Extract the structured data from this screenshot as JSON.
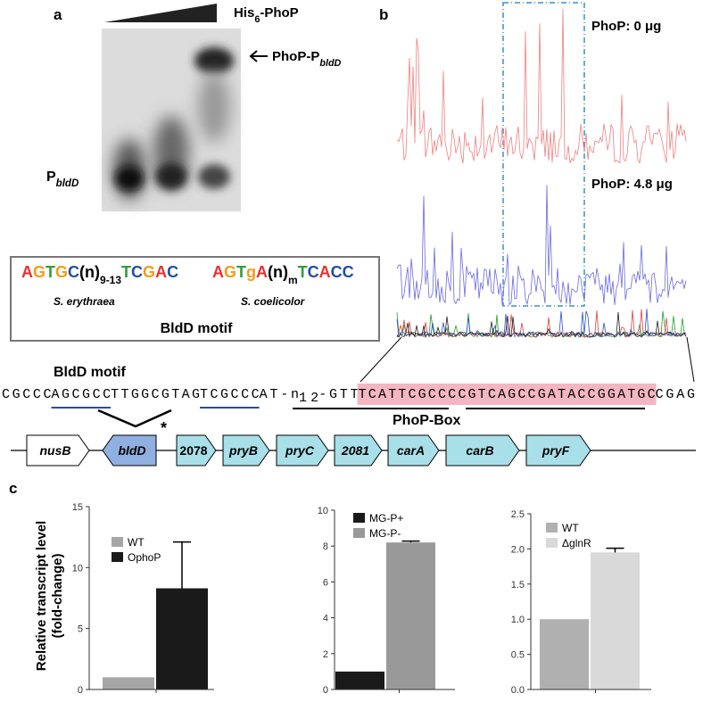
{
  "panel_labels": [
    "a",
    "b",
    "c"
  ],
  "gel": {
    "protein_label": [
      "His",
      "6",
      "-PhoP"
    ],
    "complex_label": [
      "PhoP-P",
      "bldD"
    ],
    "probe_label": [
      "P",
      "bldD"
    ]
  },
  "motifs": {
    "title": "BldD motif",
    "items": [
      {
        "prefix": "AGTGC",
        "spacer": "(n)",
        "subscript": "9-13",
        "suffix": "TCGAC",
        "species": "S. erythraea"
      },
      {
        "prefix": "AGTgA",
        "spacer": "(n)",
        "subscript": "m",
        "suffix": "TCACC",
        "species": "S. coelicolor"
      }
    ]
  },
  "chromatograms": {
    "labels": [
      "PhoP: 0 μg",
      "PhoP: 4.8 μg"
    ]
  },
  "sequence": {
    "motif_label": "BldD motif",
    "parts": [
      "CGCCC",
      "AGCGCC",
      "TTGGCGTAG",
      "TCGCCC",
      "AT-n",
      "12",
      "-GTT",
      "TCATTCGCCCCGTCAGCCGATACCGGATGC",
      "CGAG"
    ],
    "box_label": "PhoP-Box",
    "mark": "*"
  },
  "genes": [
    "nusB",
    "bldD",
    "2078",
    "pryB",
    "pryC",
    "2081",
    "carA",
    "carB",
    "pryF"
  ],
  "chart_data": [
    {
      "type": "bar",
      "y_label": [
        "Relative transcript level",
        "(fold-change)"
      ],
      "ylim": [
        0,
        15
      ],
      "yticks": [
        0,
        5,
        10,
        15
      ],
      "series": [
        {
          "name": "WT",
          "color": "#a6a6a6",
          "values": [
            1
          ]
        },
        {
          "name": "OphoP",
          "color": "#1a1a1a",
          "values": [
            8.3
          ],
          "errors": [
            3.8
          ]
        }
      ]
    },
    {
      "type": "bar",
      "ylim": [
        0,
        10
      ],
      "yticks": [
        0,
        2,
        4,
        6,
        8,
        10
      ],
      "series": [
        {
          "name": "MG-P+",
          "color": "#1a1a1a",
          "values": [
            1
          ]
        },
        {
          "name": "MG-P-",
          "color": "#999999",
          "values": [
            8.2
          ],
          "errors": [
            0.08
          ]
        }
      ]
    },
    {
      "type": "bar",
      "ylim": [
        0,
        2.5
      ],
      "yticks": [
        {
          "value": 0,
          "label": "0.0"
        },
        0.5,
        {
          "value": 1,
          "label": "1.0"
        },
        1.5,
        {
          "value": 2,
          "label": "2.0"
        },
        2.5
      ],
      "series": [
        {
          "name": "WT",
          "color": "#b0b0b0",
          "values": [
            1
          ]
        },
        {
          "name": "ΔglnR",
          "color": "#d9d9d9",
          "values": [
            1.95
          ],
          "errors": [
            0.06
          ]
        }
      ]
    }
  ]
}
